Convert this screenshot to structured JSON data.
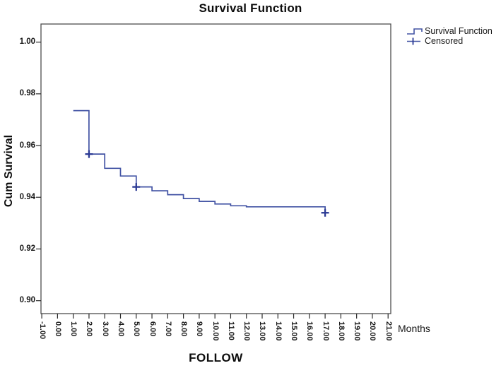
{
  "title": "Survival Function",
  "y_axis": {
    "label": "Cum Survival",
    "tick_labels": [
      "1.00",
      "0.98",
      "0.96",
      "0.94",
      "0.92",
      "0.90"
    ]
  },
  "x_axis": {
    "label": "FOLLOW",
    "unit_note": "Months",
    "tick_labels": [
      "-1.00",
      "0.00",
      "1.00",
      "2.00",
      "3.00",
      "4.00",
      "5.00",
      "6.00",
      "7.00",
      "8.00",
      "9.00",
      "10.00",
      "11.00",
      "12.00",
      "13.00",
      "14.00",
      "15.00",
      "16.00",
      "17.00",
      "18.00",
      "19.00",
      "20.00",
      "21.00"
    ]
  },
  "legend": {
    "items": [
      {
        "label": "Survival Function",
        "marker": "step-line-icon"
      },
      {
        "label": "Censored",
        "marker": "plus-marker-icon"
      }
    ]
  },
  "colors": {
    "line": "#4253a4",
    "censored": "#2b3a94",
    "frame": "#4d4d4d",
    "tick": "#2a2a2a",
    "text": "#111111"
  },
  "chart_data": {
    "type": "line",
    "subtype": "kaplan-meier-step",
    "title": "Survival Function",
    "xlabel": "FOLLOW",
    "x_unit": "Months",
    "ylabel": "Cum Survival",
    "xlim": [
      -1.05,
      21.17
    ],
    "ylim": [
      0.895,
      1.007
    ],
    "x_ticks": [
      -1,
      0,
      1,
      2,
      3,
      4,
      5,
      6,
      7,
      8,
      9,
      10,
      11,
      12,
      13,
      14,
      15,
      16,
      17,
      18,
      19,
      20,
      21
    ],
    "y_ticks": [
      1.0,
      0.98,
      0.96,
      0.94,
      0.92,
      0.9
    ],
    "grid": false,
    "legend_position": "outside-top-right",
    "series": [
      {
        "name": "Survival Function",
        "steps": [
          [
            1,
            0.9735
          ],
          [
            2,
            0.9567
          ],
          [
            3,
            0.9512
          ],
          [
            4,
            0.9482
          ],
          [
            5,
            0.944
          ],
          [
            6,
            0.9425
          ],
          [
            7,
            0.941
          ],
          [
            8,
            0.9395
          ],
          [
            9,
            0.9384
          ],
          [
            10,
            0.9374
          ],
          [
            11,
            0.9367
          ],
          [
            12,
            0.9363
          ],
          [
            17,
            0.934
          ]
        ]
      }
    ],
    "censored": [
      [
        2,
        0.9567
      ],
      [
        5,
        0.944
      ],
      [
        17,
        0.934
      ]
    ]
  }
}
